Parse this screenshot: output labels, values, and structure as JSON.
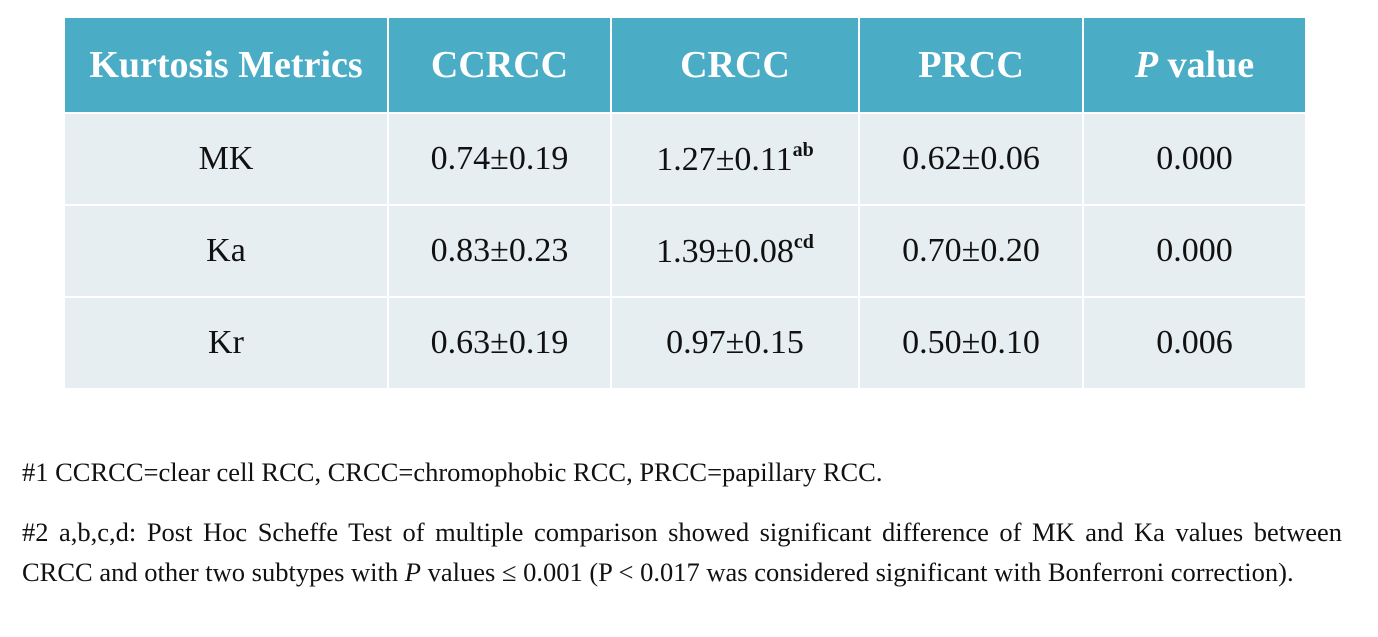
{
  "table": {
    "header": [
      "Kurtosis Metrics",
      "CCRCC",
      "CRCC",
      "PRCC",
      {
        "italic": "P",
        "text": " value"
      }
    ],
    "rows": [
      [
        "MK",
        "0.74±0.19",
        {
          "text": "1.27±0.11",
          "sup": "ab"
        },
        "0.62±0.06",
        "0.000"
      ],
      [
        "Ka",
        "0.83±0.23",
        {
          "text": "1.39±0.08",
          "sup": "cd"
        },
        "0.70±0.20",
        "0.000"
      ],
      [
        "Kr",
        "0.63±0.19",
        "0.97±0.15",
        "0.50±0.10",
        "0.006"
      ]
    ]
  },
  "notes": [
    "#1 CCRCC=clear cell RCC, CRCC=chromophobic RCC, PRCC=papillary RCC.",
    {
      "before": "#2 a,b,c,d: Post Hoc Scheffe Test of multiple comparison showed significant difference of MK and Ka values between CRCC and other two subtypes with ",
      "italic": "P",
      "after": " values ≤ 0.001 (P < 0.017 was considered significant with Bonferroni correction)."
    }
  ]
}
